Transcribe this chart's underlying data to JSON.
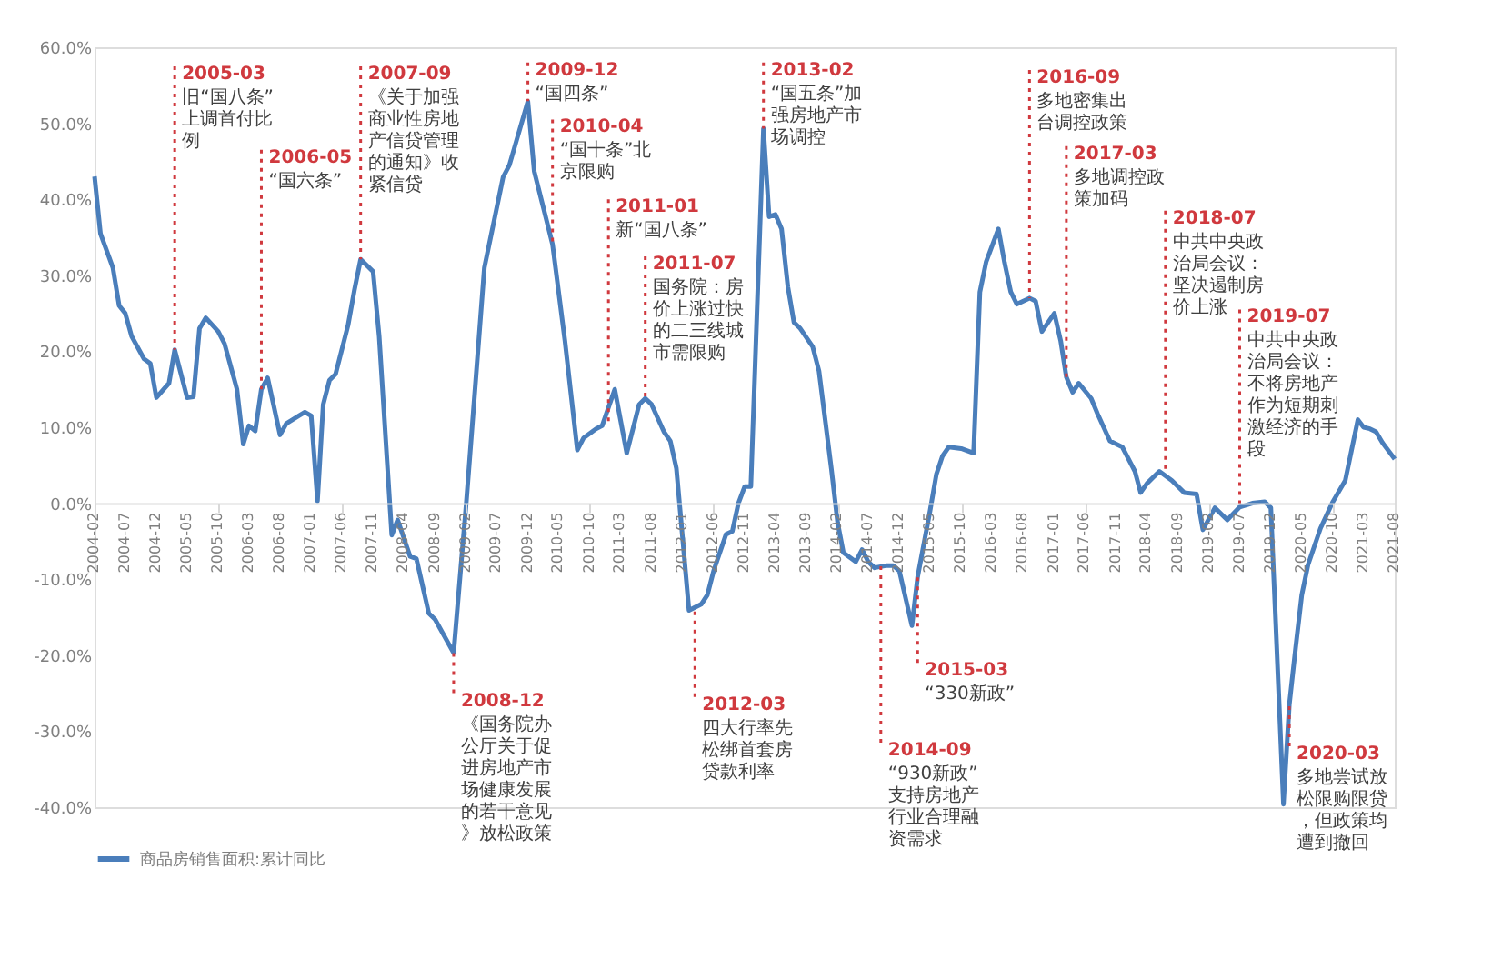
{
  "chart_data": {
    "type": "line",
    "x": [
      "2004-02",
      "2004-03",
      "2004-05",
      "2004-06",
      "2004-07",
      "2004-08",
      "2004-10",
      "2004-11",
      "2004-12",
      "2005-02",
      "2005-03",
      "2005-05",
      "2005-06",
      "2005-07",
      "2005-08",
      "2005-10",
      "2005-11",
      "2006-01",
      "2006-02",
      "2006-03",
      "2006-04",
      "2006-05",
      "2006-06",
      "2006-08",
      "2006-09",
      "2006-11",
      "2006-12",
      "2007-01",
      "2007-02",
      "2007-03",
      "2007-04",
      "2007-05",
      "2007-07",
      "2007-08",
      "2007-09",
      "2007-11",
      "2007-12",
      "2008-02",
      "2008-03",
      "2008-05",
      "2008-06",
      "2008-08",
      "2008-09",
      "2008-12",
      "2009-02",
      "2009-05",
      "2009-08",
      "2009-09",
      "2009-12",
      "2010-01",
      "2010-04",
      "2010-06",
      "2010-08",
      "2010-09",
      "2010-11",
      "2010-12",
      "2011-02",
      "2011-04",
      "2011-06",
      "2011-07",
      "2011-08",
      "2011-10",
      "2011-11",
      "2011-12",
      "2012-02",
      "2012-04",
      "2012-05",
      "2012-06",
      "2012-08",
      "2012-09",
      "2012-10",
      "2012-11",
      "2012-12",
      "2013-02",
      "2013-03",
      "2013-04",
      "2013-05",
      "2013-06",
      "2013-07",
      "2013-08",
      "2013-10",
      "2013-11",
      "2014-01",
      "2014-02",
      "2014-03",
      "2014-05",
      "2014-06",
      "2014-07",
      "2014-08",
      "2014-10",
      "2014-11",
      "2014-12",
      "2015-02",
      "2015-03",
      "2015-05",
      "2015-06",
      "2015-07",
      "2015-08",
      "2015-10",
      "2015-12",
      "2016-01",
      "2016-02",
      "2016-04",
      "2016-05",
      "2016-06",
      "2016-07",
      "2016-09",
      "2016-10",
      "2016-11",
      "2017-01",
      "2017-02",
      "2017-03",
      "2017-04",
      "2017-05",
      "2017-07",
      "2017-08",
      "2017-10",
      "2017-12",
      "2018-02",
      "2018-03",
      "2018-04",
      "2018-06",
      "2018-08",
      "2018-10",
      "2018-12",
      "2019-01",
      "2019-03",
      "2019-05",
      "2019-07",
      "2019-09",
      "2019-11",
      "2019-12",
      "2020-02",
      "2020-03",
      "2020-04",
      "2020-05",
      "2020-06",
      "2020-08",
      "2020-10",
      "2020-12",
      "2021-01",
      "2021-02",
      "2021-03",
      "2021-04",
      "2021-05",
      "2021-06",
      "2021-08"
    ],
    "series": [
      {
        "name": "商品房销售面积:累计同比",
        "color": "#4a7ebb",
        "values": [
          43,
          35.5,
          31,
          26,
          25,
          22,
          19,
          18.4,
          13.9,
          15.8,
          20.2,
          13.9,
          14,
          23,
          24.4,
          22.6,
          21,
          15,
          7.8,
          10.2,
          9.5,
          15,
          16.5,
          9,
          10.5,
          11.5,
          12,
          11.5,
          0.3,
          13,
          16.2,
          17,
          23.4,
          28,
          32.1,
          30.5,
          22,
          -4.2,
          -2.2,
          -7,
          -7.3,
          -14.5,
          -15.3,
          -19.7,
          0,
          31,
          42.9,
          44.5,
          52.9,
          43.7,
          34.1,
          21.4,
          7,
          8.6,
          9.8,
          10.2,
          15,
          6.6,
          13,
          13.8,
          13,
          9.4,
          8.2,
          4.6,
          -14.1,
          -13.3,
          -12.1,
          -8.9,
          -4.1,
          -3.7,
          0,
          2.2,
          2.2,
          49.3,
          37.7,
          38,
          36.1,
          28.5,
          23.8,
          23,
          20.6,
          17.4,
          4.5,
          -2.6,
          -6.5,
          -7.7,
          -6.1,
          -7.7,
          -8.5,
          -8.2,
          -8.2,
          -8.9,
          -16.1,
          -9.7,
          -1,
          3.8,
          6.2,
          7.4,
          7.2,
          6.6,
          27.8,
          31.8,
          36.1,
          31.7,
          27.8,
          26.2,
          27,
          26.6,
          22.6,
          25,
          21.4,
          16.6,
          14.6,
          15.8,
          13.8,
          11.8,
          8.2,
          7.4,
          4.2,
          1.4,
          2.6,
          4.2,
          3,
          1.4,
          1.2,
          -3.5,
          -0.6,
          -2.2,
          -0.5,
          0,
          0.2,
          -0.6,
          -39.6,
          -26.5,
          -19,
          -12.1,
          -8.1,
          -3.3,
          0.2,
          3,
          7,
          11,
          10,
          9.8,
          9.4,
          8,
          5.8
        ]
      }
    ],
    "xlim": [
      "2004-02",
      "2021-08"
    ],
    "xticks": [
      "2004-02",
      "2004-07",
      "2004-12",
      "2005-05",
      "2005-10",
      "2006-03",
      "2006-08",
      "2007-01",
      "2007-06",
      "2007-11",
      "2008-04",
      "2008-09",
      "2009-02",
      "2009-07",
      "2009-12",
      "2010-05",
      "2010-10",
      "2011-03",
      "2011-08",
      "2012-01",
      "2012-06",
      "2012-11",
      "2013-04",
      "2013-09",
      "2014-02",
      "2014-07",
      "2014-12",
      "2015-05",
      "2015-10",
      "2016-03",
      "2016-08",
      "2017-01",
      "2017-06",
      "2017-11",
      "2018-04",
      "2018-09",
      "2019-02",
      "2019-07",
      "2019-12",
      "2020-05",
      "2020-10",
      "2021-03",
      "2021-08"
    ],
    "ylim": [
      -40,
      60
    ],
    "yticks": [
      {
        "value": -40,
        "label": "-40.0%"
      },
      {
        "value": -30,
        "label": "-30.0%"
      },
      {
        "value": -20,
        "label": "-20.0%"
      },
      {
        "value": -10,
        "label": "-10.0%"
      },
      {
        "value": 0,
        "label": "0.0%"
      },
      {
        "value": 10,
        "label": "10.0%"
      },
      {
        "value": 20,
        "label": "20.0%"
      },
      {
        "value": 30,
        "label": "30.0%"
      },
      {
        "value": 40,
        "label": "40.0%"
      },
      {
        "value": 50,
        "label": "50.0%"
      },
      {
        "value": 60,
        "label": "60.0%"
      }
    ],
    "grid": false,
    "legend": "bottom",
    "marker": "none",
    "line_style": "solid",
    "ref_lines": [
      {
        "axis": "x",
        "value": "2005-03",
        "label": "2005-03",
        "color": "#d0393e",
        "line_style": "dotted"
      },
      {
        "axis": "x",
        "value": "2006-05",
        "label": "2006-05",
        "color": "#d0393e",
        "line_style": "dotted"
      },
      {
        "axis": "x",
        "value": "2007-09",
        "label": "2007-09",
        "color": "#d0393e",
        "line_style": "dotted"
      },
      {
        "axis": "x",
        "value": "2009-12",
        "label": "2009-12",
        "color": "#d0393e",
        "line_style": "dotted"
      },
      {
        "axis": "x",
        "value": "2010-04",
        "label": "2010-04",
        "color": "#d0393e",
        "line_style": "dotted"
      },
      {
        "axis": "x",
        "value": "2011-01",
        "label": "2011-01",
        "color": "#d0393e",
        "line_style": "dotted"
      },
      {
        "axis": "x",
        "value": "2011-07",
        "label": "2011-07",
        "color": "#d0393e",
        "line_style": "dotted"
      },
      {
        "axis": "x",
        "value": "2013-02",
        "label": "2013-02",
        "color": "#d0393e",
        "line_style": "dotted"
      },
      {
        "axis": "x",
        "value": "2016-09",
        "label": "2016-09",
        "color": "#d0393e",
        "line_style": "dotted"
      },
      {
        "axis": "x",
        "value": "2017-03",
        "label": "2017-03",
        "color": "#d0393e",
        "line_style": "dotted"
      },
      {
        "axis": "x",
        "value": "2018-07",
        "label": "2018-07",
        "color": "#d0393e",
        "line_style": "dotted"
      },
      {
        "axis": "x",
        "value": "2019-07",
        "label": "2019-07",
        "color": "#d0393e",
        "line_style": "dotted"
      },
      {
        "axis": "x",
        "value": "2008-12",
        "label": "2008-12",
        "color": "#d0393e",
        "line_style": "dotted"
      },
      {
        "axis": "x",
        "value": "2012-03",
        "label": "2012-03",
        "color": "#d0393e",
        "line_style": "dotted"
      },
      {
        "axis": "x",
        "value": "2014-09",
        "label": "2014-09",
        "color": "#d0393e",
        "line_style": "dotted"
      },
      {
        "axis": "x",
        "value": "2015-03",
        "label": "2015-03",
        "color": "#d0393e",
        "line_style": "dotted"
      },
      {
        "axis": "x",
        "value": "2020-03",
        "label": "2020-03",
        "color": "#d0393e",
        "line_style": "dotted"
      }
    ],
    "annotations": [
      {
        "text": "旧“国八条”上调首付比例",
        "x": "2005-03",
        "y": 57.5
      },
      {
        "text": "“国六条”",
        "x": "2006-05",
        "y": 46.5
      },
      {
        "text": "《关于加强商业性房地产信贷管理的通知》收紧信贷",
        "x": "2007-09",
        "y": 57.5
      },
      {
        "text": "“国四条”",
        "x": "2009-12",
        "y": 58
      },
      {
        "text": "“国十条”北京限购",
        "x": "2010-04",
        "y": 50.5
      },
      {
        "text": "新“国八条”",
        "x": "2011-01",
        "y": 40
      },
      {
        "text": "国务院：房价上涨过快的二三线城市需限购",
        "x": "2011-07",
        "y": 32.5
      },
      {
        "text": "“国五条”加强房地产市场调控",
        "x": "2013-02",
        "y": 58
      },
      {
        "text": "多地密集出台调控政策",
        "x": "2016-09",
        "y": 57
      },
      {
        "text": "多地调控政策加码",
        "x": "2017-03",
        "y": 47
      },
      {
        "text": "中共中央政治局会议：坚决遏制房价上涨",
        "x": "2018-07",
        "y": 38.5
      },
      {
        "text": "中共中央政治局会议：不将房地产作为短期刺激经济的手段",
        "x": "2019-07",
        "y": 25.5
      },
      {
        "text": "《国务院办公厅关于促进房地产市场健康发展的若干意见》放松政策",
        "x": "2008-12",
        "y": -25
      },
      {
        "text": "四大行率先松绑首套房贷款利率",
        "x": "2012-03",
        "y": -25.5
      },
      {
        "text": "“930新政”支持房地产行业合理融资需求",
        "x": "2014-09",
        "y": -31.5
      },
      {
        "text": "“330新政”",
        "x": "2015-03",
        "y": -21
      },
      {
        "text": "多地尝试放松限购限贷，但政策均遭到撤回",
        "x": "2020-03",
        "y": -32
      }
    ]
  }
}
